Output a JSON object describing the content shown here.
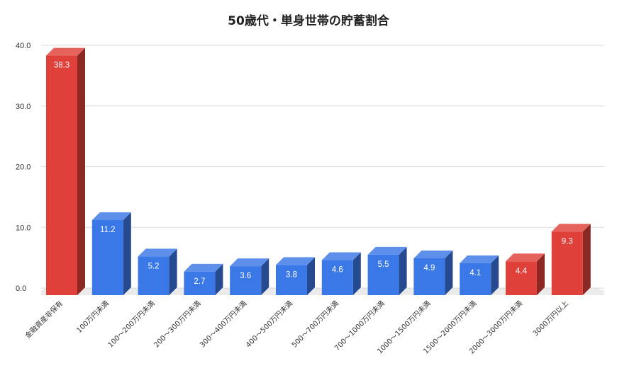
{
  "chart_data": {
    "type": "bar",
    "title": "50歳代・単身世帯の貯蓄割合",
    "xlabel": "",
    "ylabel": "",
    "ylim": [
      0,
      40
    ],
    "y_ticks": [
      "0.0",
      "10.0",
      "20.0",
      "30.0",
      "40.0"
    ],
    "grid": true,
    "style": "3d",
    "categories": [
      "金融資産非保有",
      "100万円未満",
      "100〜200万円未満",
      "200〜300万円未満",
      "300〜400万円未満",
      "400〜500万円未満",
      "500〜700万円未満",
      "700〜1000万円未満",
      "1000〜1500万円未満",
      "1500〜2000万円未満",
      "2000〜3000万円未満",
      "3000万円以上"
    ],
    "values": [
      38.3,
      11.2,
      5.2,
      2.7,
      3.6,
      3.8,
      4.6,
      5.5,
      4.9,
      4.1,
      4.4,
      9.3
    ],
    "value_labels": [
      "38.3",
      "11.2",
      "5.2",
      "2.7",
      "3.6",
      "3.8",
      "4.6",
      "5.5",
      "4.9",
      "4.1",
      "4.4",
      "9.3"
    ],
    "bar_colors": [
      "red",
      "blue",
      "blue",
      "blue",
      "blue",
      "blue",
      "blue",
      "blue",
      "blue",
      "blue",
      "red",
      "red"
    ],
    "colors": {
      "blue": "#3b78e7",
      "red": "#e0403a",
      "grid": "#d9d9d9",
      "floor": "#ebebeb"
    }
  }
}
